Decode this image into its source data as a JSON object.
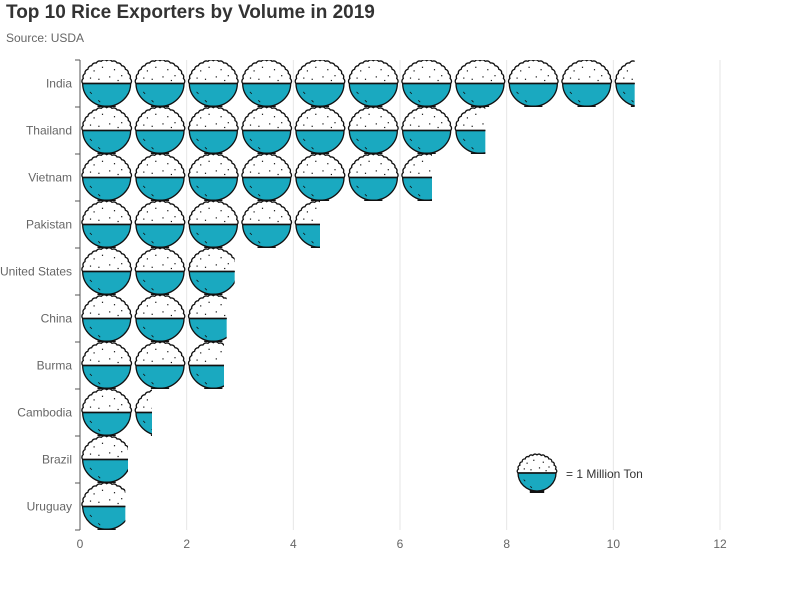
{
  "chart_data": {
    "type": "bar",
    "title": "Top 10 Rice Exporters by Volume in 2019",
    "subtitle": "Source: USDA",
    "categories": [
      "India",
      "Thailand",
      "Vietnam",
      "Pakistan",
      "United States",
      "China",
      "Burma",
      "Cambodia",
      "Brazil",
      "Uruguay"
    ],
    "values": [
      10.4,
      7.6,
      6.6,
      4.5,
      2.9,
      2.75,
      2.7,
      1.35,
      0.9,
      0.85
    ],
    "unit_per_icon": 1,
    "xlim": [
      0,
      12
    ],
    "xticks": [
      "0",
      "2",
      "4",
      "6",
      "8",
      "10",
      "12"
    ],
    "grid": true,
    "legend": {
      "text": "= 1 Million Ton",
      "position": "bottom-right"
    },
    "colors": {
      "bowl": "#1aa9c0",
      "rice": "#ffffff",
      "stroke": "#111111",
      "grid": "#e6e6e6"
    },
    "icon": "rice-bowl-icon"
  }
}
